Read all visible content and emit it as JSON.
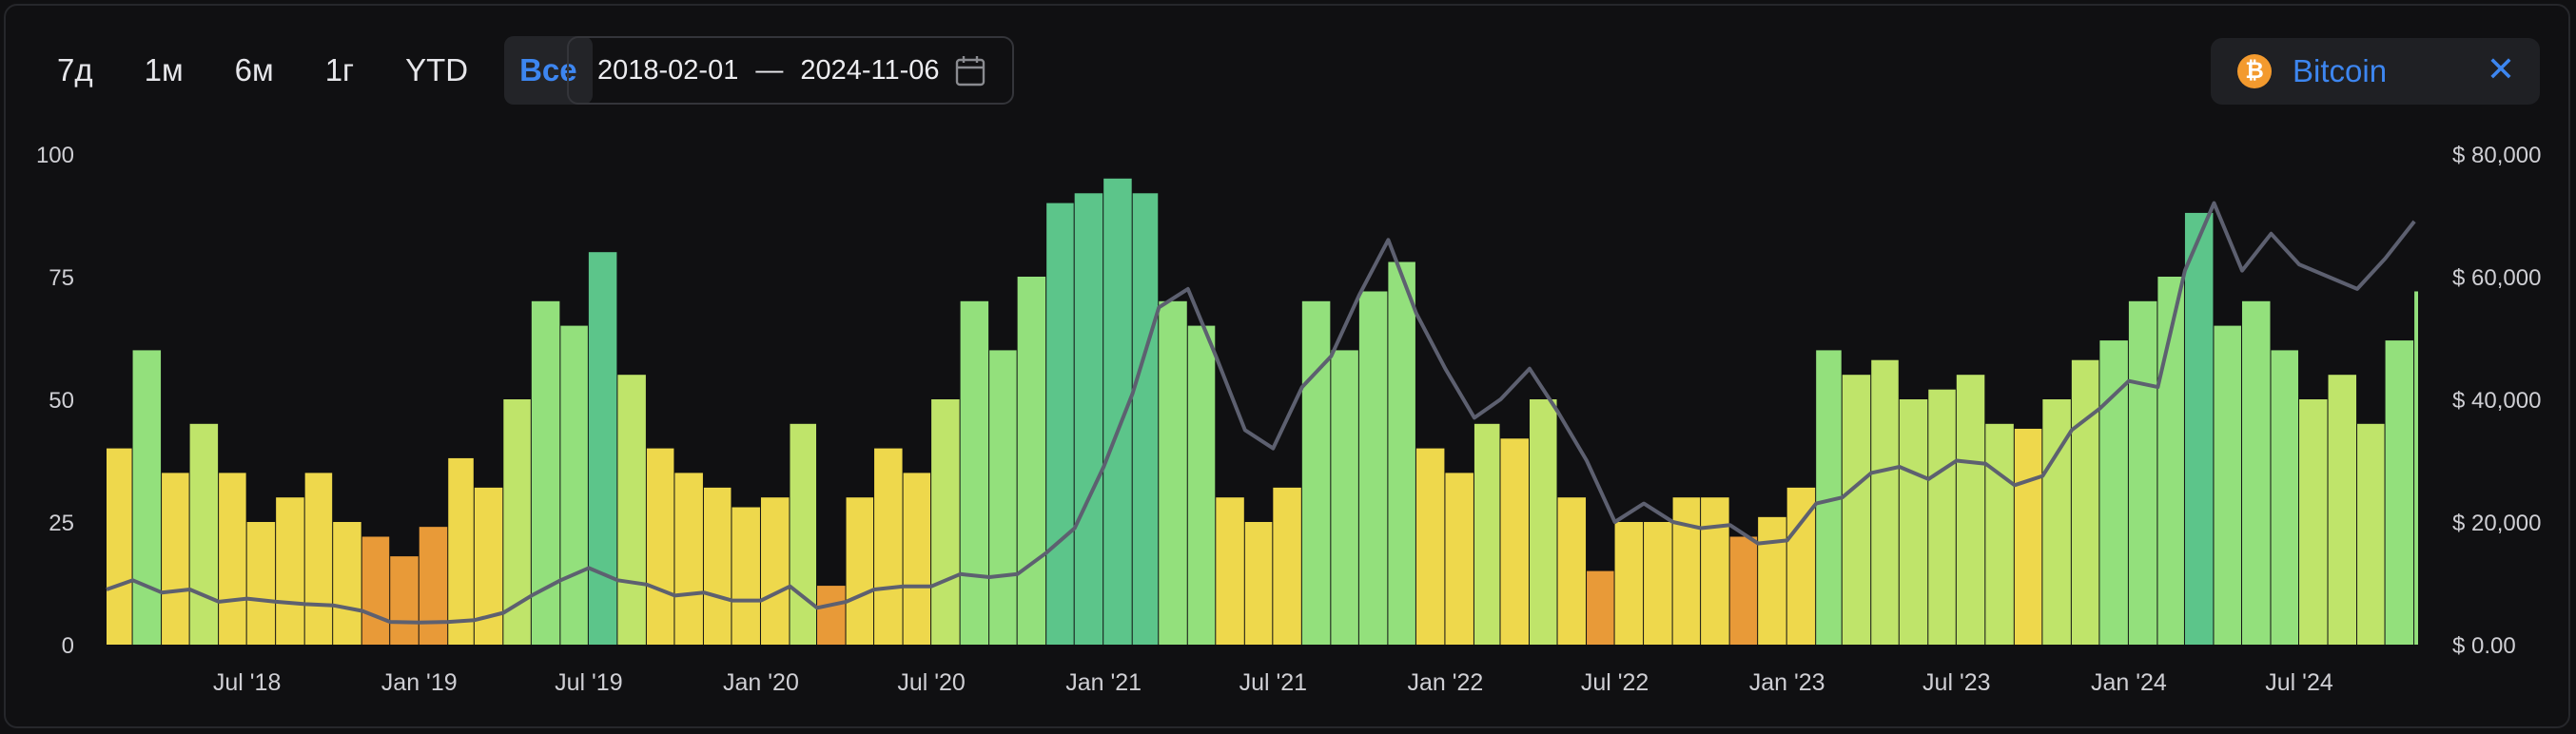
{
  "periods": [
    {
      "label": "7д",
      "active": false
    },
    {
      "label": "1м",
      "active": false
    },
    {
      "label": "6м",
      "active": false
    },
    {
      "label": "1г",
      "active": false
    },
    {
      "label": "YTD",
      "active": false
    },
    {
      "label": "Все",
      "active": true
    }
  ],
  "date_range": {
    "start": "2018-02-01",
    "separator": "—",
    "end": "2024-11-06"
  },
  "asset": {
    "name": "Bitcoin",
    "symbol_glyph": "₿",
    "close_glyph": "✕",
    "color": "#f39a2e"
  },
  "colors": {
    "accent": "#3d86f0",
    "background": "#101012",
    "price_line": "#5d6070",
    "bar_scale": [
      "#e89a38",
      "#eed84c",
      "#bfe46a",
      "#93e07c",
      "#5cc58a"
    ]
  },
  "chart_data": {
    "type": "bar",
    "title": "",
    "x_start": "2018-02-01",
    "x_end": "2024-11-06",
    "left_axis": {
      "ticks": [
        "0",
        "25",
        "50",
        "75",
        "100"
      ],
      "ylim": [
        0,
        100
      ]
    },
    "right_axis": {
      "ticks": [
        "$ 0.00",
        "$ 20,000",
        "$ 40,000",
        "$ 60,000",
        "$ 80,000"
      ],
      "ylim": [
        0,
        80000
      ]
    },
    "x_ticks": [
      {
        "label": "Jul '18",
        "date": "2018-07-01"
      },
      {
        "label": "Jan '19",
        "date": "2019-01-01"
      },
      {
        "label": "Jul '19",
        "date": "2019-07-01"
      },
      {
        "label": "Jan '20",
        "date": "2020-01-01"
      },
      {
        "label": "Jul '20",
        "date": "2020-07-01"
      },
      {
        "label": "Jan '21",
        "date": "2021-01-01"
      },
      {
        "label": "Jul '21",
        "date": "2021-07-01"
      },
      {
        "label": "Jan '22",
        "date": "2022-01-01"
      },
      {
        "label": "Jul '22",
        "date": "2022-07-01"
      },
      {
        "label": "Jan '23",
        "date": "2023-01-01"
      },
      {
        "label": "Jul '23",
        "date": "2023-07-01"
      },
      {
        "label": "Jan '24",
        "date": "2024-01-01"
      },
      {
        "label": "Jul '24",
        "date": "2024-07-01"
      }
    ],
    "series": [
      {
        "kind": "bars",
        "axis": "left",
        "x": [
          "2018-02-01",
          "2018-03-01",
          "2018-04-01",
          "2018-05-01",
          "2018-06-01",
          "2018-07-01",
          "2018-08-01",
          "2018-09-01",
          "2018-10-01",
          "2018-11-01",
          "2018-12-01",
          "2019-01-01",
          "2019-02-01",
          "2019-03-01",
          "2019-04-01",
          "2019-05-01",
          "2019-06-01",
          "2019-07-01",
          "2019-08-01",
          "2019-09-01",
          "2019-10-01",
          "2019-11-01",
          "2019-12-01",
          "2020-01-01",
          "2020-02-01",
          "2020-03-01",
          "2020-04-01",
          "2020-05-01",
          "2020-06-01",
          "2020-07-01",
          "2020-08-01",
          "2020-09-01",
          "2020-10-01",
          "2020-11-01",
          "2020-12-01",
          "2021-01-01",
          "2021-02-01",
          "2021-03-01",
          "2021-04-01",
          "2021-05-01",
          "2021-06-01",
          "2021-07-01",
          "2021-08-01",
          "2021-09-01",
          "2021-10-01",
          "2021-11-01",
          "2021-12-01",
          "2022-01-01",
          "2022-02-01",
          "2022-03-01",
          "2022-04-01",
          "2022-05-01",
          "2022-06-01",
          "2022-07-01",
          "2022-08-01",
          "2022-09-01",
          "2022-10-01",
          "2022-11-01",
          "2022-12-01",
          "2023-01-01",
          "2023-02-01",
          "2023-03-01",
          "2023-04-01",
          "2023-05-01",
          "2023-06-01",
          "2023-07-01",
          "2023-08-01",
          "2023-09-01",
          "2023-10-01",
          "2023-11-01",
          "2023-12-01",
          "2024-01-01",
          "2024-02-01",
          "2024-03-01",
          "2024-04-01",
          "2024-05-01",
          "2024-06-01",
          "2024-07-01",
          "2024-08-01",
          "2024-09-01",
          "2024-10-01",
          "2024-11-01"
        ],
        "values": [
          40,
          60,
          35,
          45,
          35,
          25,
          30,
          35,
          25,
          22,
          18,
          24,
          38,
          32,
          50,
          70,
          65,
          80,
          55,
          40,
          35,
          32,
          28,
          30,
          45,
          12,
          30,
          40,
          35,
          50,
          70,
          60,
          75,
          90,
          92,
          95,
          92,
          70,
          65,
          30,
          25,
          32,
          70,
          60,
          72,
          78,
          40,
          35,
          45,
          42,
          50,
          30,
          15,
          25,
          25,
          30,
          30,
          22,
          26,
          32,
          60,
          55,
          58,
          50,
          52,
          55,
          45,
          44,
          50,
          58,
          62,
          70,
          75,
          88,
          65,
          70,
          60,
          50,
          55,
          45,
          62,
          72
        ]
      },
      {
        "kind": "line",
        "axis": "right",
        "name": "Bitcoin",
        "x": [
          "2018-02-01",
          "2018-03-01",
          "2018-04-01",
          "2018-05-01",
          "2018-06-01",
          "2018-07-01",
          "2018-08-01",
          "2018-09-01",
          "2018-10-01",
          "2018-11-01",
          "2018-12-01",
          "2019-01-01",
          "2019-02-01",
          "2019-03-01",
          "2019-04-01",
          "2019-05-01",
          "2019-06-01",
          "2019-07-01",
          "2019-08-01",
          "2019-09-01",
          "2019-10-01",
          "2019-11-01",
          "2019-12-01",
          "2020-01-01",
          "2020-02-01",
          "2020-03-01",
          "2020-04-01",
          "2020-05-01",
          "2020-06-01",
          "2020-07-01",
          "2020-08-01",
          "2020-09-01",
          "2020-10-01",
          "2020-11-01",
          "2020-12-01",
          "2021-01-01",
          "2021-02-01",
          "2021-03-01",
          "2021-04-01",
          "2021-05-01",
          "2021-06-01",
          "2021-07-01",
          "2021-08-01",
          "2021-09-01",
          "2021-10-01",
          "2021-11-01",
          "2021-12-01",
          "2022-01-01",
          "2022-02-01",
          "2022-03-01",
          "2022-04-01",
          "2022-05-01",
          "2022-06-01",
          "2022-07-01",
          "2022-08-01",
          "2022-09-01",
          "2022-10-01",
          "2022-11-01",
          "2022-12-01",
          "2023-01-01",
          "2023-02-01",
          "2023-03-01",
          "2023-04-01",
          "2023-05-01",
          "2023-06-01",
          "2023-07-01",
          "2023-08-01",
          "2023-09-01",
          "2023-10-01",
          "2023-11-01",
          "2023-12-01",
          "2024-01-01",
          "2024-02-01",
          "2024-03-01",
          "2024-04-01",
          "2024-05-01",
          "2024-06-01",
          "2024-07-01",
          "2024-08-01",
          "2024-09-01",
          "2024-10-01",
          "2024-11-01"
        ],
        "values": [
          9000,
          10500,
          8500,
          9000,
          7000,
          7500,
          7000,
          6600,
          6400,
          5500,
          3700,
          3600,
          3700,
          4000,
          5200,
          8000,
          10500,
          12500,
          10500,
          9800,
          8000,
          8500,
          7200,
          7200,
          9500,
          6000,
          7000,
          9000,
          9500,
          9500,
          11500,
          11000,
          11500,
          15000,
          19000,
          29000,
          41000,
          55000,
          58000,
          47000,
          35000,
          32000,
          42000,
          47000,
          57000,
          66000,
          54000,
          45000,
          37000,
          40000,
          45000,
          38000,
          30000,
          20000,
          23000,
          20000,
          19000,
          19500,
          16500,
          17000,
          23000,
          24000,
          28000,
          29000,
          27000,
          30000,
          29500,
          26000,
          27500,
          35000,
          38500,
          43000,
          42000,
          61000,
          72000,
          61000,
          67000,
          62000,
          60000,
          58000,
          63000,
          69000
        ]
      }
    ]
  }
}
